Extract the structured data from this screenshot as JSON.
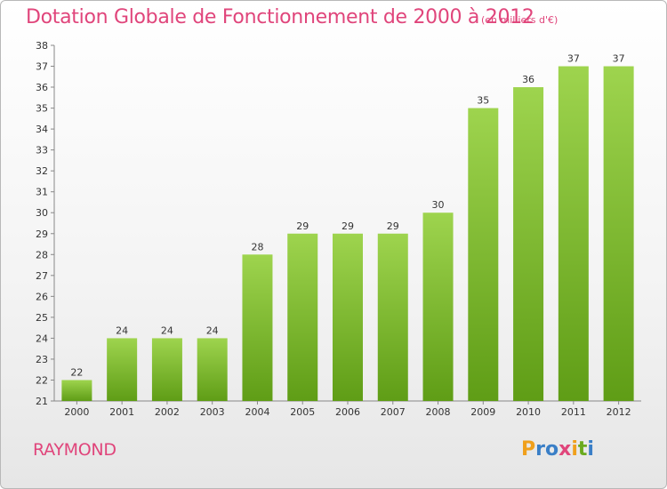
{
  "title": "Dotation Globale de Fonctionnement de 2000 à 2012",
  "subtitle": "(en milliers d'€)",
  "commune": "RAYMOND",
  "logo": {
    "letters": [
      "P",
      "r",
      "o",
      "x",
      "i",
      "t",
      "i"
    ],
    "colors": [
      "#f0a01c",
      "#3a7fc7",
      "#3a7fc7",
      "#e0457b",
      "#f0a01c",
      "#6aaa1e",
      "#3a7fc7"
    ]
  },
  "colors": {
    "bar_top": "#9ed44e",
    "bar_bottom": "#5f9d16",
    "title": "#e0457b"
  },
  "chart_data": {
    "type": "bar",
    "categories": [
      "2000",
      "2001",
      "2002",
      "2003",
      "2004",
      "2005",
      "2006",
      "2007",
      "2008",
      "2009",
      "2010",
      "2011",
      "2012"
    ],
    "values": [
      22,
      24,
      24,
      24,
      28,
      29,
      29,
      29,
      30,
      35,
      36,
      37,
      37
    ],
    "ylim": [
      21,
      38
    ],
    "yticks": [
      21,
      22,
      23,
      24,
      25,
      26,
      27,
      28,
      29,
      30,
      31,
      32,
      33,
      34,
      35,
      36,
      37,
      38
    ],
    "grid": false
  }
}
